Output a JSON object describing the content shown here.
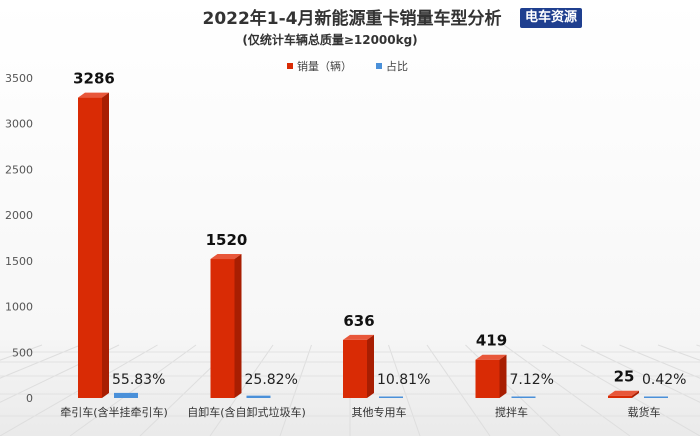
{
  "chart_data": {
    "type": "bar",
    "title": "2022年1-4月新能源重卡销量车型分析",
    "subtitle": "(仅统计车辆总质量≥12000kg)",
    "brand": "电车资源",
    "categories": [
      "牵引车(含半挂牵引车)",
      "自卸车(含自卸式垃圾车)",
      "其他专用车",
      "搅拌车",
      "载货车"
    ],
    "series": [
      {
        "name": "销量（辆）",
        "values": [
          3286,
          1520,
          636,
          419,
          25
        ],
        "labels": [
          "3286",
          "1520",
          "636",
          "419",
          "25"
        ],
        "color": "#d92b05"
      },
      {
        "name": "占比",
        "values": [
          55.83,
          25.82,
          10.81,
          7.12,
          0.42
        ],
        "labels": [
          "55.83%",
          "25.82%",
          "10.81%",
          "7.12%",
          "0.42%"
        ],
        "color": "#4a90d9"
      }
    ],
    "y_ticks": [
      "0",
      "500",
      "1000",
      "1500",
      "2000",
      "2500",
      "3000",
      "3500"
    ],
    "ylim": [
      0,
      3500
    ],
    "legend_position": "top-center",
    "grid": false
  }
}
